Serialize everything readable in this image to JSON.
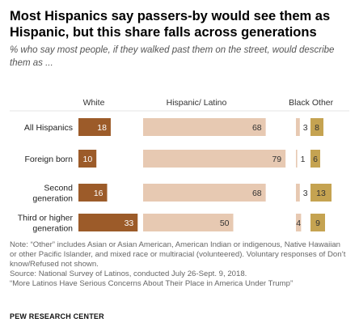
{
  "title": "Most Hispanics say passers-by would see them as Hispanic, but this share falls across generations",
  "subtitle": "% who say most people, if they walked past them on the street, would describe them as ...",
  "chart_data": {
    "type": "bar",
    "orientation": "horizontal",
    "stacked_columns": true,
    "categories": [
      [
        "All Hispanics"
      ],
      [
        "Foreign born"
      ],
      [
        "Second",
        "generation"
      ],
      [
        "Third or higher",
        "generation"
      ]
    ],
    "series": [
      {
        "name": "White",
        "values": [
          18,
          10,
          16,
          33
        ],
        "color": "#9c5b29",
        "label_color": "#ffffff"
      },
      {
        "name": "Hispanic/ Latino",
        "values": [
          68,
          79,
          68,
          50
        ],
        "color": "#e7c9b2",
        "label_color": "#333333"
      },
      {
        "name": "Black",
        "values": [
          3,
          1,
          3,
          4
        ],
        "color": "#e7c9b2",
        "label_color": "#333333"
      },
      {
        "name": "Other",
        "values": [
          8,
          6,
          13,
          9
        ],
        "color": "#c5a351",
        "label_color": "#333333"
      }
    ]
  },
  "notes": [
    "Note: “Other” includes Asian or Asian American, American Indian or indigenous, Native Hawaiian or other Pacific Islander, and mixed race or multiracial (volunteered). Voluntary responses of Don’t know/Refused not shown.",
    "Source: National Survey of Latinos, conducted July 26-Sept. 9, 2018.",
    "“More Latinos Have Serious Concerns About Their Place in America Under Trump”"
  ],
  "source_org": "PEW RESEARCH CENTER"
}
